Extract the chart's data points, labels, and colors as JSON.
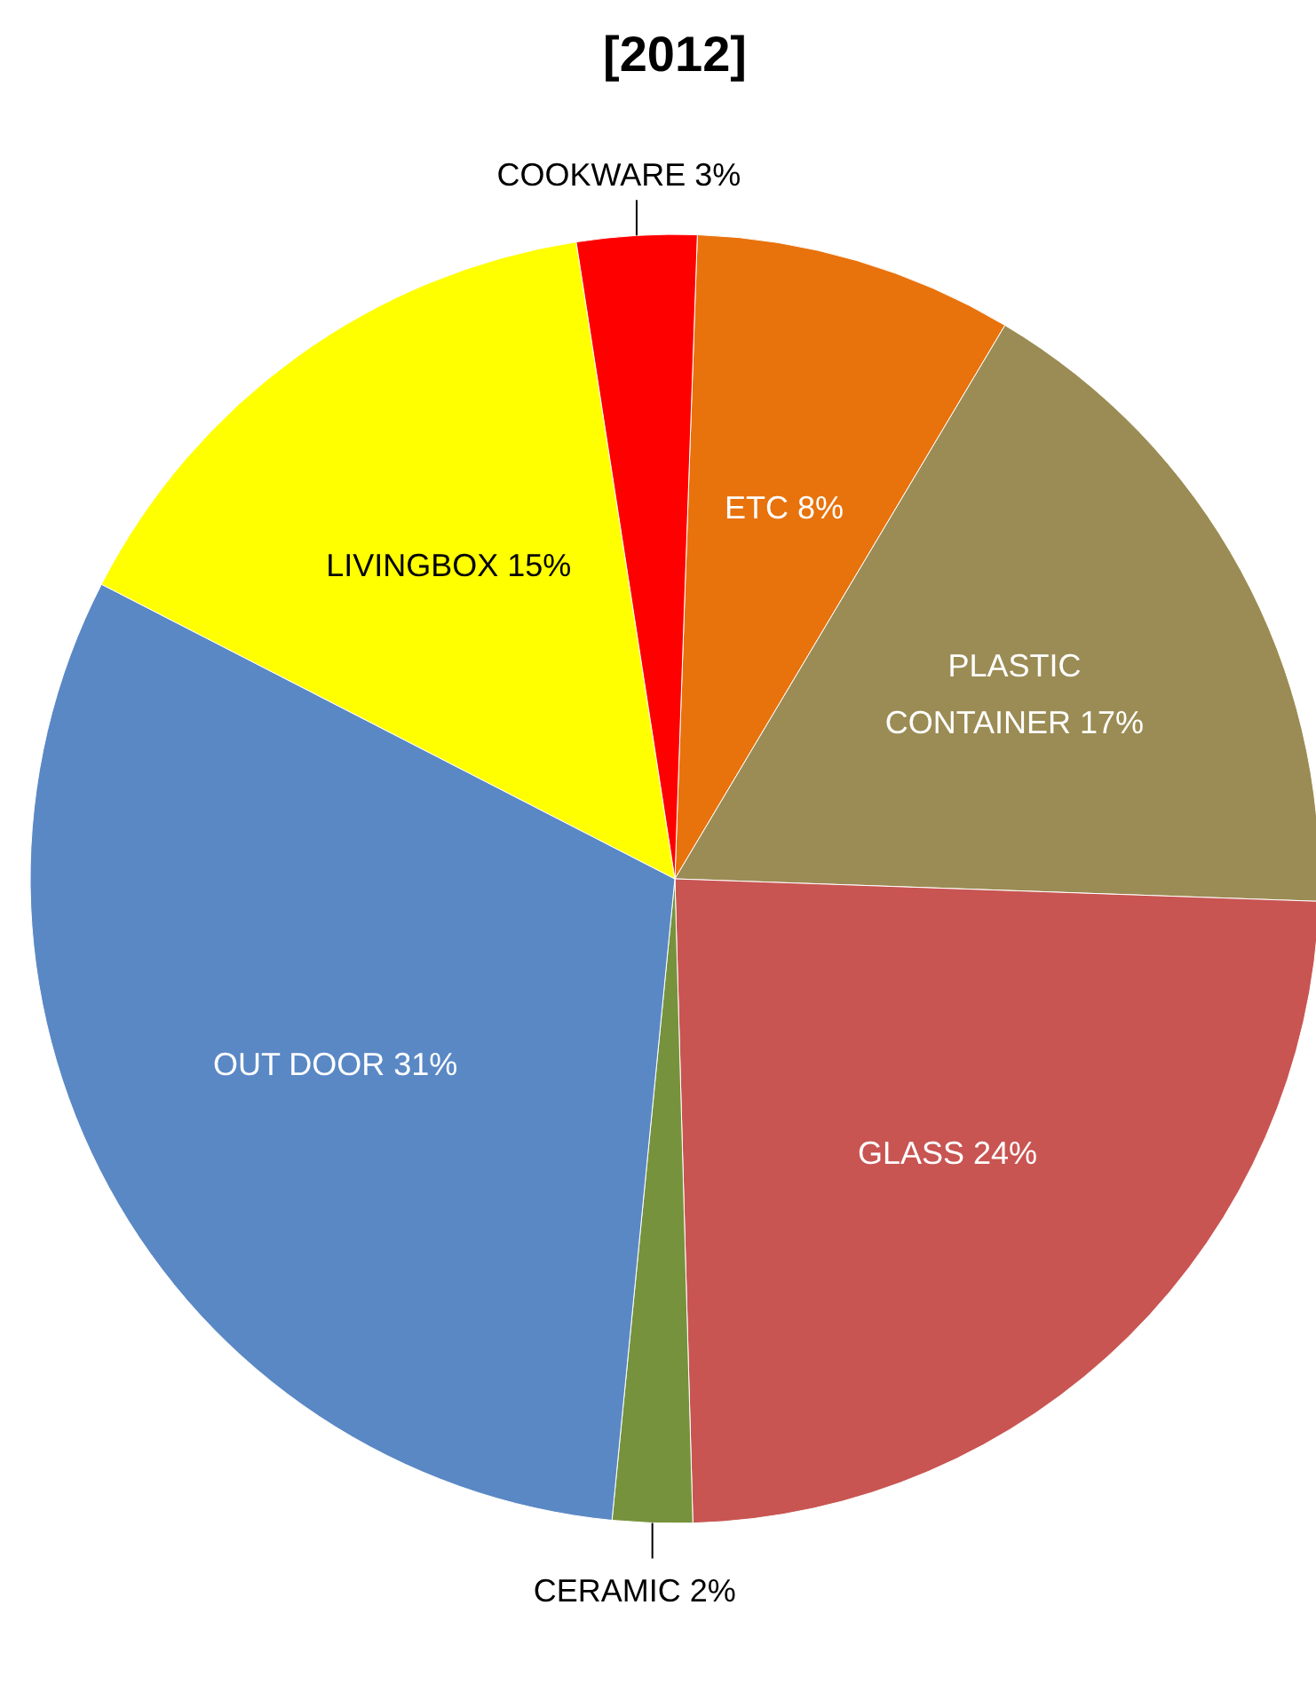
{
  "chart_data": {
    "type": "pie",
    "title": "[2012]",
    "categories": [
      "ETC",
      "PLASTIC CONTAINER",
      "GLASS",
      "CERAMIC",
      "OUT DOOR",
      "LIVINGBOX",
      "COOKWARE"
    ],
    "values": [
      8,
      17,
      24,
      2,
      31,
      15,
      3
    ],
    "colors": [
      "#e8720c",
      "#9b8c55",
      "#c85552",
      "#77923c",
      "#5a88c5",
      "#ffff00",
      "#ff0000"
    ],
    "value_labels": [
      "8%",
      "17%",
      "24%",
      "2%",
      "31%",
      "15%",
      "3%"
    ]
  }
}
